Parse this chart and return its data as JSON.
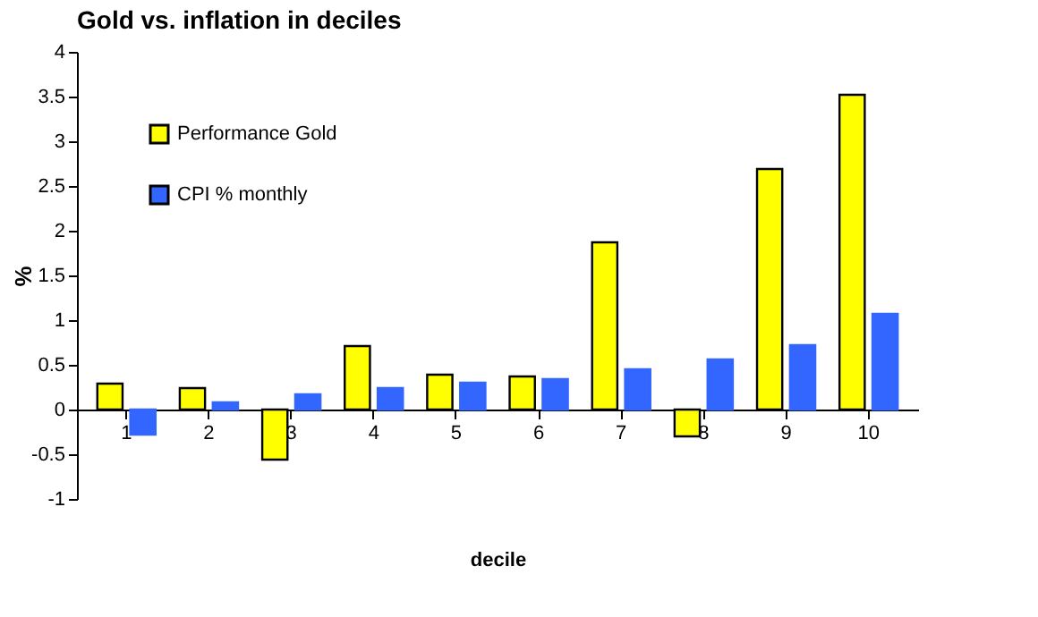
{
  "chart_data": {
    "type": "bar",
    "title": "Gold vs. inflation in deciles",
    "xlabel": "decile",
    "ylabel": "%",
    "categories": [
      "1",
      "2",
      "3",
      "4",
      "5",
      "6",
      "7",
      "8",
      "9",
      "10"
    ],
    "series": [
      {
        "name": "Performance Gold",
        "color": "#ffff00",
        "values": [
          0.29,
          0.24,
          -0.56,
          0.71,
          0.39,
          0.37,
          1.87,
          -0.3,
          2.69,
          3.52
        ]
      },
      {
        "name": "CPI % monthly",
        "color": "#3366ff",
        "values": [
          -0.28,
          0.08,
          0.17,
          0.24,
          0.3,
          0.34,
          0.45,
          0.56,
          0.72,
          1.07
        ]
      }
    ],
    "ylim": [
      -1,
      4
    ],
    "yticks": [
      -1,
      -0.5,
      0,
      0.5,
      1,
      1.5,
      2,
      2.5,
      3,
      3.5,
      4
    ],
    "grid": false,
    "legend": "top left"
  }
}
